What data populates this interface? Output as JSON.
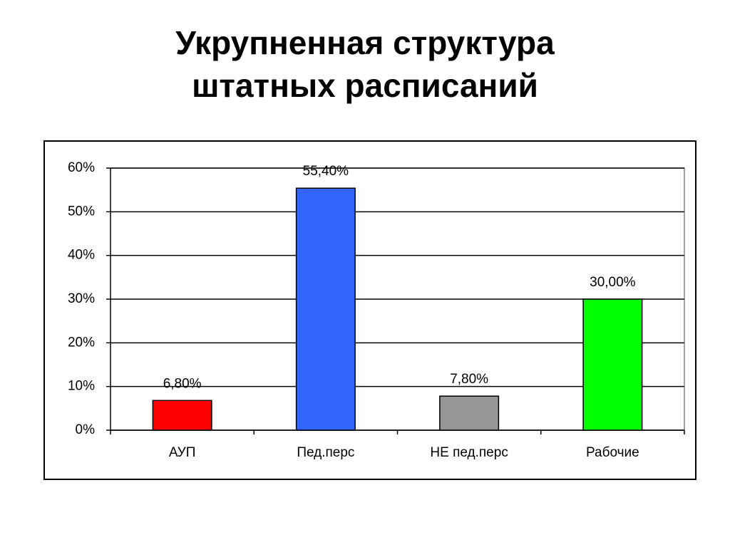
{
  "chart_data": {
    "type": "bar",
    "title": "Укрупненная структура штатных расписаний",
    "categories": [
      "АУП",
      "Пед.перс",
      "НЕ пед.перс",
      "Рабочие"
    ],
    "values": [
      6.8,
      55.4,
      7.8,
      30
    ],
    "value_labels": [
      "6,80%",
      "55,40%",
      "7,80%",
      "30,00%"
    ],
    "colors": [
      "#ff0000",
      "#3366ff",
      "#969696",
      "#00ff00"
    ],
    "ylim": [
      0,
      60
    ],
    "yticks": [
      {
        "value": 0,
        "label": "0%"
      },
      {
        "value": 10,
        "label": "10%"
      },
      {
        "value": 20,
        "label": "20%"
      },
      {
        "value": 30,
        "label": "30%"
      },
      {
        "value": 40,
        "label": "40%"
      },
      {
        "value": 50,
        "label": "50%"
      },
      {
        "value": 60,
        "label": "60%"
      }
    ],
    "grid": true
  }
}
